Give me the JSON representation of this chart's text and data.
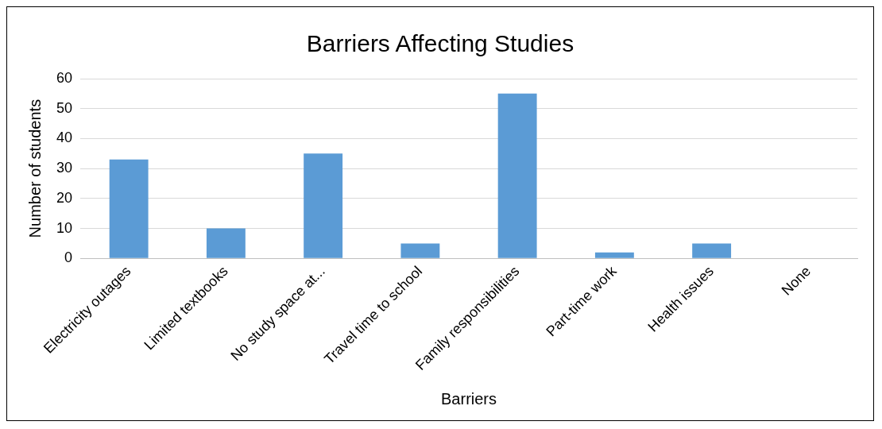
{
  "chart_data": {
    "type": "bar",
    "title": "Barriers Affecting Studies",
    "xlabel": "Barriers",
    "ylabel": "Number of students",
    "categories": [
      "Electricity outages",
      "Limited textbooks",
      "No study space at...",
      "Travel time to school",
      "Family responsibilities",
      "Part-time work",
      "Health issues",
      "None"
    ],
    "values": [
      33,
      10,
      35,
      5,
      55,
      2,
      5,
      0
    ],
    "color": "#5b9bd5",
    "ylim": [
      0,
      60
    ],
    "yticks": [
      0,
      10,
      20,
      30,
      40,
      50,
      60
    ],
    "grid": "y",
    "legend": false
  }
}
